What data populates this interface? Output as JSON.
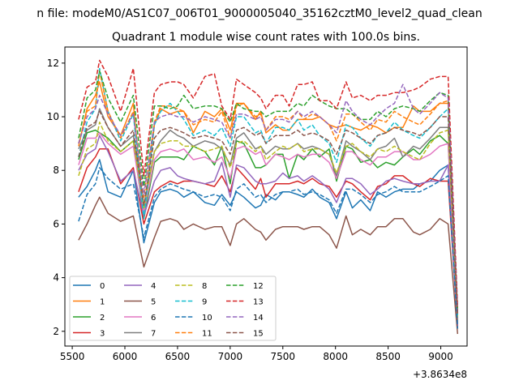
{
  "chart_data": {
    "type": "line",
    "suptitle": "n file: modeM0/AS1C07_006T01_9000005040_35162cztM0_level2_quad_clean",
    "title": "Quadrant 1 module wise count rates with 100.0s bins.",
    "xlabel": "",
    "ylabel": "",
    "x_offset_label": "+3.8634e8",
    "xlim": [
      5430,
      9250
    ],
    "ylim": [
      1.45,
      12.6
    ],
    "xticks": [
      5500,
      6000,
      6500,
      7000,
      7500,
      8000,
      8500,
      9000
    ],
    "yticks": [
      2,
      4,
      6,
      8,
      10,
      12
    ],
    "grid": false,
    "legend_position": "lower-left",
    "legend_columns": 4,
    "x": [
      5560,
      5640,
      5720,
      5760,
      5840,
      5960,
      6080,
      6180,
      6280,
      6340,
      6430,
      6500,
      6560,
      6650,
      6760,
      6850,
      6920,
      7000,
      7060,
      7130,
      7240,
      7290,
      7340,
      7430,
      7500,
      7560,
      7640,
      7700,
      7780,
      7850,
      7940,
      8010,
      8100,
      8160,
      8240,
      8330,
      8400,
      8480,
      8560,
      8640,
      8740,
      8800,
      8900,
      8990,
      9070,
      9160
    ],
    "series": [
      {
        "name": "0",
        "color": "#1f77b4",
        "dash": "solid",
        "values": [
          7.0,
          7.4,
          8.0,
          8.4,
          7.2,
          7.0,
          8.0,
          5.3,
          6.8,
          7.2,
          7.3,
          7.2,
          7.0,
          7.2,
          6.8,
          6.7,
          7.1,
          6.7,
          7.2,
          7.0,
          6.6,
          6.7,
          7.1,
          6.9,
          7.2,
          7.2,
          7.1,
          7.0,
          7.3,
          7.0,
          6.8,
          6.2,
          7.2,
          6.6,
          6.9,
          6.5,
          7.2,
          7.0,
          7.2,
          7.3,
          7.3,
          7.5,
          7.6,
          8.0,
          8.2,
          2.1
        ]
      },
      {
        "name": "1",
        "color": "#ff7f0e",
        "dash": "solid",
        "values": [
          8.9,
          10.3,
          10.8,
          11.3,
          10.0,
          9.3,
          10.5,
          6.3,
          9.7,
          10.3,
          10.1,
          10.2,
          10.2,
          9.4,
          10.2,
          10.0,
          10.3,
          9.5,
          10.5,
          10.5,
          9.9,
          10.2,
          9.4,
          9.7,
          9.5,
          9.5,
          9.9,
          9.9,
          9.9,
          10.0,
          9.7,
          9.6,
          9.7,
          9.6,
          9.5,
          9.7,
          9.6,
          9.4,
          9.6,
          9.6,
          10.4,
          10.2,
          10.2,
          10.5,
          10.5,
          2.5
        ]
      },
      {
        "name": "2",
        "color": "#2ca02c",
        "dash": "solid",
        "values": [
          8.4,
          9.4,
          9.5,
          9.4,
          9.2,
          8.7,
          9.1,
          6.2,
          8.3,
          8.5,
          8.5,
          8.5,
          8.4,
          8.9,
          8.7,
          8.2,
          8.9,
          7.5,
          9.1,
          9.0,
          8.1,
          8.1,
          8.2,
          8.6,
          8.6,
          7.7,
          8.6,
          8.4,
          8.8,
          8.5,
          8.8,
          7.6,
          8.9,
          8.8,
          8.3,
          8.4,
          8.1,
          8.3,
          8.2,
          8.5,
          8.8,
          8.6,
          9.1,
          9.3,
          9.0,
          2.3
        ]
      },
      {
        "name": "3",
        "color": "#d62728",
        "dash": "solid",
        "values": [
          7.2,
          8.1,
          8.5,
          8.8,
          8.8,
          7.5,
          8.1,
          6.0,
          7.2,
          7.4,
          7.6,
          7.5,
          7.6,
          7.6,
          7.5,
          7.4,
          7.8,
          7.2,
          8.1,
          7.8,
          7.3,
          7.7,
          7.0,
          7.5,
          7.5,
          7.5,
          7.6,
          7.5,
          7.7,
          7.5,
          7.4,
          7.0,
          7.6,
          7.5,
          7.2,
          6.9,
          7.4,
          7.5,
          7.8,
          7.8,
          7.5,
          7.4,
          7.7,
          7.6,
          7.6,
          2.2
        ]
      },
      {
        "name": "4",
        "color": "#9467bd",
        "dash": "solid",
        "values": [
          8.0,
          8.6,
          8.8,
          9.3,
          8.7,
          7.6,
          8.0,
          6.3,
          7.6,
          8.0,
          8.1,
          7.8,
          7.7,
          7.6,
          7.5,
          7.6,
          8.3,
          7.0,
          8.2,
          8.1,
          7.6,
          7.5,
          7.5,
          7.6,
          7.9,
          7.7,
          7.8,
          7.6,
          7.8,
          7.6,
          7.3,
          6.8,
          7.7,
          7.7,
          7.5,
          7.1,
          7.3,
          7.6,
          7.7,
          7.6,
          7.5,
          7.5,
          7.6,
          7.6,
          8.2,
          2.2
        ]
      },
      {
        "name": "5",
        "color": "#8c564b",
        "dash": "solid",
        "values": [
          5.4,
          6.0,
          6.7,
          7.0,
          6.4,
          6.1,
          6.3,
          4.4,
          5.5,
          6.1,
          6.2,
          6.1,
          5.8,
          6.0,
          5.8,
          5.9,
          5.9,
          5.2,
          6.0,
          6.2,
          5.8,
          5.7,
          5.4,
          5.8,
          5.9,
          5.9,
          5.9,
          5.8,
          5.9,
          5.9,
          5.6,
          5.1,
          6.3,
          5.6,
          5.8,
          5.6,
          5.9,
          5.9,
          6.2,
          6.2,
          5.7,
          5.6,
          5.8,
          6.2,
          6.0,
          1.9
        ]
      },
      {
        "name": "6",
        "color": "#e377c2",
        "dash": "solid",
        "values": [
          8.2,
          9.2,
          9.2,
          9.4,
          9.0,
          8.6,
          8.9,
          6.4,
          8.4,
          8.7,
          8.8,
          8.7,
          8.8,
          8.4,
          8.5,
          8.3,
          8.5,
          7.7,
          8.8,
          8.9,
          8.6,
          8.7,
          8.2,
          8.6,
          8.5,
          8.4,
          8.6,
          8.5,
          8.6,
          8.6,
          8.3,
          7.7,
          8.7,
          8.7,
          8.4,
          8.2,
          8.5,
          8.5,
          8.7,
          8.7,
          8.4,
          8.4,
          8.6,
          8.9,
          9.0,
          2.4
        ]
      },
      {
        "name": "7",
        "color": "#7f7f7f",
        "dash": "solid",
        "values": [
          8.8,
          9.5,
          9.7,
          10.3,
          9.6,
          8.9,
          9.3,
          6.7,
          8.7,
          9.1,
          9.5,
          9.3,
          9.2,
          8.9,
          9.1,
          9.0,
          8.8,
          8.2,
          9.2,
          9.4,
          8.8,
          8.9,
          8.6,
          8.9,
          8.8,
          8.8,
          9.0,
          8.8,
          8.9,
          8.8,
          8.6,
          7.8,
          9.1,
          8.9,
          8.7,
          8.4,
          8.8,
          8.9,
          9.2,
          8.5,
          8.9,
          8.8,
          9.2,
          9.6,
          9.6,
          2.4
        ]
      },
      {
        "name": "8",
        "color": "#bcbd22",
        "dash": "dashed",
        "values": [
          7.8,
          8.8,
          9.0,
          9.8,
          9.1,
          8.7,
          9.1,
          6.6,
          8.7,
          9.0,
          9.1,
          9.1,
          8.9,
          8.9,
          8.7,
          8.8,
          8.9,
          8.1,
          9.0,
          9.1,
          8.7,
          8.9,
          8.4,
          8.7,
          8.9,
          8.8,
          9.0,
          8.7,
          8.8,
          8.8,
          8.6,
          7.9,
          8.9,
          9.0,
          8.7,
          8.5,
          8.8,
          8.7,
          8.9,
          8.7,
          8.5,
          8.4,
          9.0,
          9.4,
          9.5,
          2.5
        ]
      },
      {
        "name": "9",
        "color": "#17becf",
        "dash": "dashed",
        "values": [
          8.5,
          9.8,
          10.3,
          11.8,
          10.2,
          9.1,
          10.1,
          6.2,
          9.7,
          10.2,
          10.5,
          10.2,
          9.9,
          9.3,
          9.5,
          9.3,
          9.6,
          8.9,
          10.0,
          10.0,
          9.4,
          9.5,
          9.0,
          9.6,
          9.6,
          9.5,
          9.9,
          9.5,
          9.7,
          9.3,
          9.0,
          8.3,
          9.7,
          9.6,
          9.2,
          8.9,
          9.3,
          9.4,
          9.8,
          9.5,
          9.3,
          9.2,
          9.6,
          10.0,
          10.3,
          2.6
        ]
      },
      {
        "name": "10",
        "color": "#1f77b4",
        "dash": "dashed",
        "values": [
          6.1,
          7.1,
          7.5,
          8.1,
          7.7,
          7.3,
          7.5,
          5.5,
          7.0,
          7.3,
          7.5,
          7.4,
          7.3,
          7.2,
          7.0,
          7.1,
          7.0,
          6.5,
          7.3,
          7.5,
          7.0,
          7.1,
          6.8,
          7.1,
          7.2,
          7.2,
          7.3,
          7.1,
          7.2,
          7.1,
          6.9,
          6.4,
          7.3,
          7.3,
          7.1,
          6.8,
          7.1,
          7.2,
          7.4,
          7.2,
          7.2,
          7.2,
          7.4,
          7.6,
          7.8,
          2.1
        ]
      },
      {
        "name": "11",
        "color": "#ff7f0e",
        "dash": "dashed",
        "values": [
          9.0,
          10.2,
          10.4,
          11.7,
          10.2,
          9.2,
          10.2,
          7.0,
          9.8,
          10.4,
          10.4,
          10.3,
          10.2,
          9.7,
          9.9,
          9.8,
          10.2,
          9.2,
          10.4,
          10.5,
          10.0,
          10.1,
          9.5,
          10.0,
          10.0,
          9.9,
          10.2,
          9.9,
          10.1,
          10.0,
          9.7,
          9.1,
          10.1,
          10.1,
          9.8,
          9.5,
          9.9,
          9.8,
          10.2,
          10.0,
          9.8,
          9.7,
          10.1,
          10.5,
          10.6,
          2.7
        ]
      },
      {
        "name": "12",
        "color": "#2ca02c",
        "dash": "dashed",
        "values": [
          9.2,
          10.7,
          11.0,
          11.7,
          10.7,
          9.8,
          10.8,
          7.4,
          10.4,
          10.4,
          10.3,
          10.4,
          10.8,
          10.3,
          10.4,
          10.4,
          10.3,
          9.8,
          10.5,
          10.3,
          10.2,
          10.2,
          10.0,
          10.2,
          10.2,
          10.2,
          10.5,
          10.4,
          10.8,
          10.6,
          10.4,
          10.3,
          10.3,
          10.1,
          9.9,
          9.9,
          10.2,
          10.0,
          10.3,
          10.4,
          10.3,
          10.2,
          10.6,
          10.9,
          10.8,
          2.8
        ]
      },
      {
        "name": "13",
        "color": "#d62728",
        "dash": "dashed",
        "values": [
          9.9,
          11.1,
          11.3,
          12.1,
          11.5,
          10.2,
          11.8,
          7.8,
          10.9,
          11.2,
          11.3,
          11.3,
          11.2,
          10.7,
          11.5,
          11.6,
          10.4,
          9.9,
          11.4,
          11.2,
          10.9,
          10.7,
          10.3,
          10.8,
          10.8,
          10.4,
          11.2,
          11.2,
          11.3,
          10.6,
          10.6,
          10.3,
          11.3,
          10.7,
          10.8,
          10.6,
          10.8,
          10.8,
          10.9,
          10.9,
          11.0,
          11.1,
          11.4,
          11.5,
          11.5,
          2.9
        ]
      },
      {
        "name": "14",
        "color": "#9467bd",
        "dash": "dashed",
        "values": [
          9.0,
          10.0,
          10.3,
          10.8,
          10.1,
          9.3,
          10.1,
          7.1,
          9.8,
          10.0,
          10.1,
          10.0,
          10.0,
          9.8,
          10.0,
          9.9,
          9.8,
          9.2,
          10.1,
          10.1,
          9.9,
          10.0,
          9.5,
          9.9,
          9.9,
          9.8,
          10.2,
          10.0,
          10.2,
          10.0,
          9.7,
          9.4,
          10.6,
          10.2,
          9.9,
          9.7,
          10.0,
          10.3,
          10.5,
          11.2,
          10.3,
          10.1,
          10.5,
          10.9,
          10.7,
          2.7
        ]
      },
      {
        "name": "15",
        "color": "#8c564b",
        "dash": "dashed",
        "values": [
          8.5,
          9.6,
          9.8,
          10.2,
          9.6,
          8.9,
          9.5,
          6.7,
          9.2,
          9.5,
          9.6,
          9.5,
          9.4,
          9.2,
          9.3,
          9.2,
          9.1,
          8.6,
          9.5,
          9.6,
          9.3,
          9.4,
          9.0,
          9.3,
          9.3,
          9.3,
          9.5,
          9.3,
          9.4,
          9.3,
          9.1,
          8.6,
          9.5,
          9.4,
          9.2,
          9.0,
          9.3,
          9.4,
          9.6,
          9.5,
          9.4,
          9.3,
          9.6,
          10.0,
          10.0,
          2.6
        ]
      }
    ]
  }
}
